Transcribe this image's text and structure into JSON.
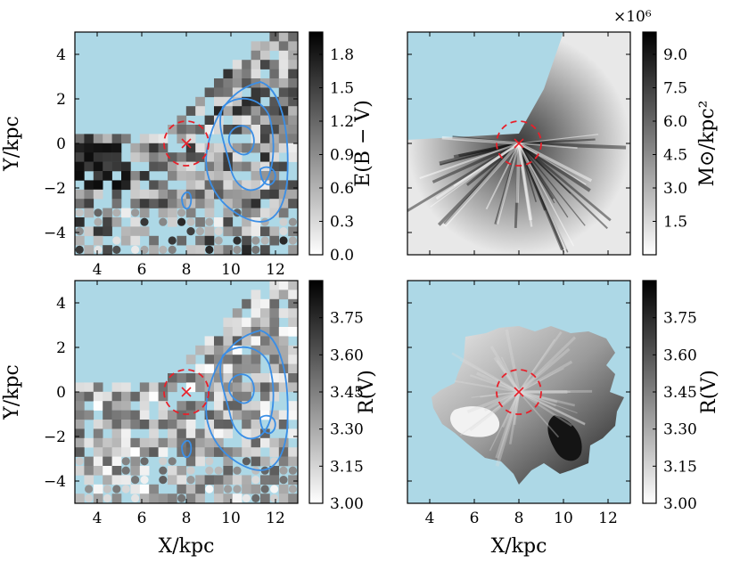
{
  "chart_data": [
    {
      "type": "heatmap",
      "panel": "top-left",
      "description_text": "binned map with contours",
      "xlabel": "",
      "ylabel": "Y/kpc",
      "xlim": [
        3,
        13
      ],
      "ylim": [
        -5,
        5
      ],
      "xticks": [
        "4",
        "6",
        "8",
        "10",
        "12"
      ],
      "yticks": [
        "4",
        "2",
        "0",
        "−2",
        "−4"
      ],
      "colorbar": {
        "label": "E(B − V)",
        "ticks": [
          "1.8",
          "1.5",
          "1.2",
          "0.9",
          "0.6",
          "0.3",
          "0.0"
        ],
        "range": [
          0.0,
          2.0
        ]
      },
      "marker": {
        "x": 8,
        "y": 0,
        "radius_kpc": 1
      },
      "contours": true
    },
    {
      "type": "heatmap",
      "panel": "top-right",
      "xlabel": "",
      "ylabel": "",
      "xlim": [
        3,
        13
      ],
      "ylim": [
        -5,
        5
      ],
      "colorbar": {
        "label": "M⊙/kpc²",
        "exponent": "×10⁶",
        "ticks": [
          "9.0",
          "7.5",
          "6.0",
          "4.5",
          "3.0",
          "1.5"
        ],
        "range": [
          0,
          10
        ]
      },
      "marker": {
        "x": 8,
        "y": 0,
        "radius_kpc": 1
      }
    },
    {
      "type": "heatmap",
      "panel": "bottom-left",
      "xlabel": "X/kpc",
      "ylabel": "Y/kpc",
      "xlim": [
        3,
        13
      ],
      "ylim": [
        -5,
        5
      ],
      "xticks": [
        "4",
        "6",
        "8",
        "10",
        "12"
      ],
      "yticks": [
        "4",
        "2",
        "0",
        "−2",
        "−4"
      ],
      "colorbar": {
        "label": "R(V)",
        "ticks": [
          "3.75",
          "3.60",
          "3.45",
          "3.30",
          "3.15",
          "3.00"
        ],
        "range": [
          3.0,
          3.9
        ]
      },
      "marker": {
        "x": 8,
        "y": 0,
        "radius_kpc": 1
      },
      "contours": true
    },
    {
      "type": "heatmap",
      "panel": "bottom-right",
      "xlabel": "X/kpc",
      "ylabel": "",
      "xlim": [
        3,
        13
      ],
      "ylim": [
        -5,
        5
      ],
      "xticks": [
        "4",
        "6",
        "8",
        "10",
        "12"
      ],
      "colorbar": {
        "label": "R(V)",
        "ticks": [
          "3.75",
          "3.60",
          "3.45",
          "3.30",
          "3.15",
          "3.00"
        ],
        "range": [
          3.0,
          3.9
        ]
      },
      "marker": {
        "x": 8,
        "y": 0,
        "radius_kpc": 1
      }
    }
  ],
  "colors": {
    "background": "#add8e6",
    "contour": "#3a8ee6",
    "marker": "#e8202a"
  }
}
